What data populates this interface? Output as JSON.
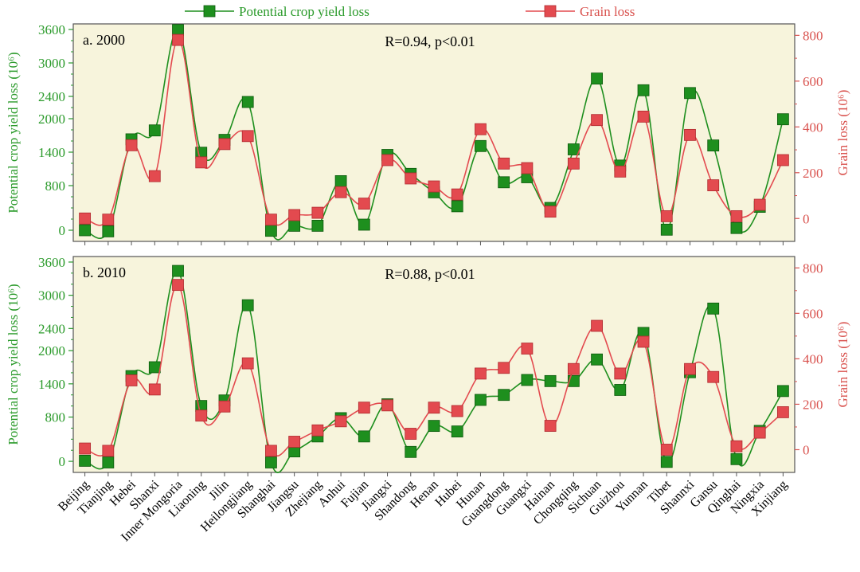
{
  "legend": {
    "series1_label": "Potential crop yield loss",
    "series2_label": "Grain loss"
  },
  "colors": {
    "series1": "#1e8f1e",
    "series2": "#e34a4f",
    "panel_bg": "#f7f4dc",
    "series1_axis": "#2a9a2a",
    "series2_axis": "#d9534f"
  },
  "chart_data": [
    {
      "type": "line",
      "panel_label": "a. 2000",
      "annotation": "R=0.94, p<0.01",
      "ylabel_left": "Potential crop yield loss (10⁶)",
      "ylabel_right": "Grain loss (10⁶)",
      "ylim_left": [
        -200,
        3700
      ],
      "ylim_right": [
        -100,
        850
      ],
      "yticks_left": [
        0,
        800,
        1400,
        2000,
        2400,
        3000,
        3600
      ],
      "yticks_right": [
        0,
        200,
        400,
        600,
        800
      ],
      "categories": [
        "Beijing",
        "Tianjing",
        "Hebei",
        "Shanxi",
        "Inner Mongoria",
        "Liaoning",
        "Jilin",
        "Heilongjiang",
        "Shanghai",
        "Jiangsu",
        "Zhejiang",
        "Anhui",
        "Fujian",
        "Jiangxi",
        "Shandong",
        "Henan",
        "Hubei",
        "Hunan",
        "Guangdong",
        "Guangxi",
        "Hainan",
        "Chongqing",
        "Sichuan",
        "Guizhou",
        "Yunnan",
        "Tibet",
        "Shannxi",
        "Gansu",
        "Qinghai",
        "Ningxia",
        "Xinjiang"
      ],
      "series": [
        {
          "name": "Potential crop yield loss",
          "axis": "left",
          "values": [
            0,
            -20,
            1630,
            1790,
            3590,
            1390,
            1620,
            2300,
            -10,
            80,
            80,
            880,
            100,
            1350,
            1010,
            680,
            430,
            1510,
            860,
            950,
            400,
            1450,
            2720,
            1160,
            2510,
            10,
            2460,
            1520,
            40,
            420,
            1990
          ]
        },
        {
          "name": "Grain loss",
          "axis": "right",
          "values": [
            0,
            -5,
            320,
            185,
            780,
            245,
            325,
            360,
            -5,
            15,
            25,
            115,
            65,
            255,
            175,
            140,
            105,
            390,
            240,
            220,
            30,
            240,
            430,
            205,
            445,
            10,
            365,
            145,
            10,
            60,
            255
          ]
        }
      ]
    },
    {
      "type": "line",
      "panel_label": "b. 2010",
      "annotation": "R=0.88, p<0.01",
      "ylabel_left": "Potential crop yield loss (10⁶)",
      "ylabel_right": "Grain loss (10⁶)",
      "ylim_left": [
        -200,
        3700
      ],
      "ylim_right": [
        -100,
        850
      ],
      "yticks_left": [
        0,
        800,
        1400,
        2000,
        2400,
        3000,
        3600
      ],
      "yticks_right": [
        0,
        200,
        400,
        600,
        800
      ],
      "categories": [
        "Beijing",
        "Tianjing",
        "Hebei",
        "Shanxi",
        "Inner Mongoria",
        "Liaoning",
        "Jilin",
        "Heilongjiang",
        "Shanghai",
        "Jiangsu",
        "Zhejiang",
        "Anhui",
        "Fujian",
        "Jiangxi",
        "Shandong",
        "Henan",
        "Hubei",
        "Hunan",
        "Guangdong",
        "Guangxi",
        "Hainan",
        "Chongqing",
        "Sichuan",
        "Guizhou",
        "Yunnan",
        "Tibet",
        "Shannxi",
        "Gansu",
        "Qinghai",
        "Ningxia",
        "Xinjiang"
      ],
      "series": [
        {
          "name": "Potential crop yield loss",
          "axis": "left",
          "values": [
            10,
            -20,
            1540,
            1700,
            3440,
            1000,
            1100,
            2820,
            -20,
            180,
            450,
            780,
            450,
            1030,
            170,
            640,
            540,
            1110,
            1200,
            1470,
            1450,
            1450,
            1840,
            1290,
            2320,
            -10,
            1610,
            2760,
            40,
            550,
            1270
          ]
        },
        {
          "name": "Grain loss",
          "axis": "right",
          "values": [
            5,
            -5,
            305,
            265,
            725,
            150,
            190,
            380,
            -5,
            35,
            85,
            125,
            185,
            195,
            70,
            185,
            170,
            335,
            360,
            445,
            105,
            355,
            545,
            335,
            475,
            0,
            355,
            320,
            15,
            75,
            165
          ]
        }
      ]
    }
  ]
}
